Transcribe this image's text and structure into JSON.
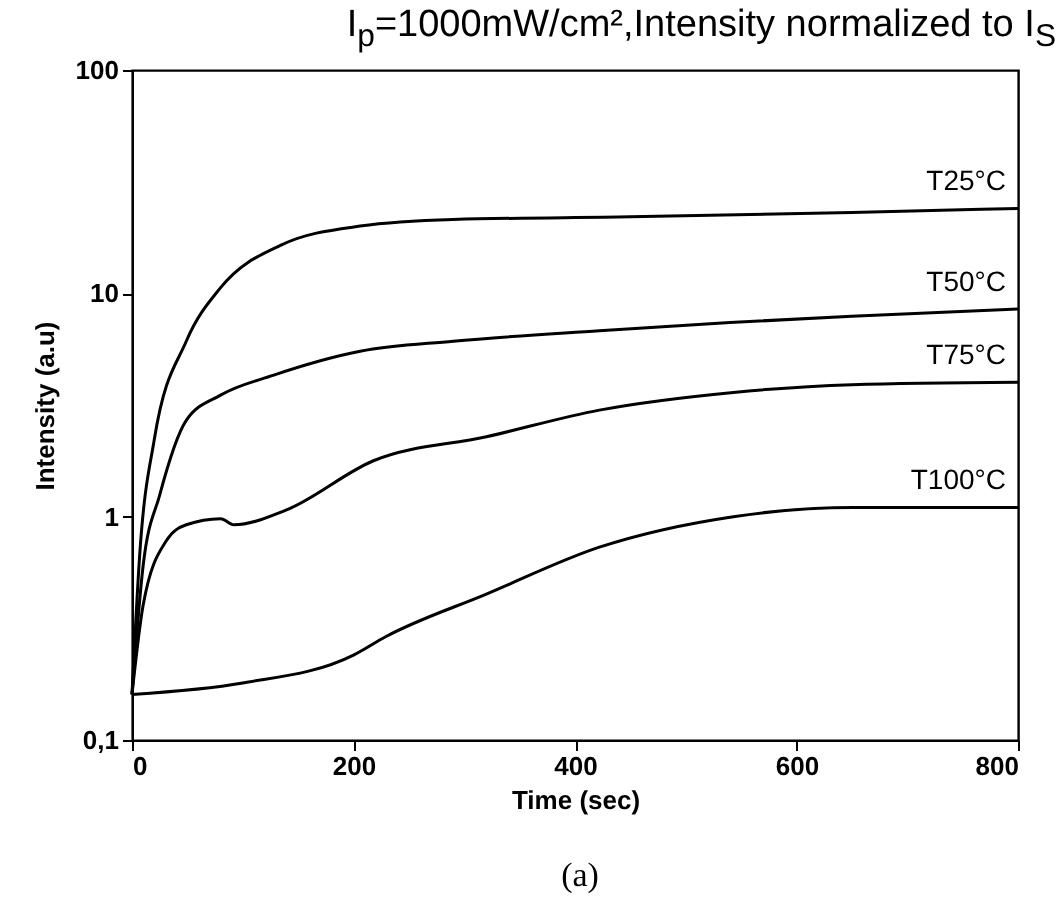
{
  "chart_data": {
    "type": "line",
    "title": "I$_{p}$=1000mW/cm²,Intensity normalized to I$_{S}$",
    "xlabel": "Time (sec)",
    "ylabel": "Intensity (a.u)",
    "log": "y",
    "xlim": [
      0,
      800
    ],
    "xticks": [
      0,
      200,
      400,
      600,
      800
    ],
    "ylim": [
      0.1,
      100
    ],
    "yticks": [
      {
        "value": 0.1,
        "label": "0,1"
      },
      1,
      10,
      100
    ],
    "legend": false,
    "grid": false,
    "marker": "none",
    "line_style": "solid",
    "annotations": [
      "(a)"
    ],
    "series": [
      {
        "name": "T25°C",
        "color": "#000000",
        "x": [
          0,
          7,
          20,
          49,
          80,
          134,
          206,
          290,
          450,
          650,
          800
        ],
        "values": [
          0.16,
          0.68,
          2.2,
          6.1,
          10.6,
          16.4,
          20,
          21.4,
          22,
          23,
          24
        ]
      },
      {
        "name": "T50°C",
        "color": "#000000",
        "x": [
          0,
          10,
          25,
          49,
          80,
          128,
          206,
          290,
          422,
          540,
          650,
          800
        ],
        "values": [
          0.16,
          0.6,
          1.25,
          2.7,
          3.5,
          4.3,
          5.5,
          6.1,
          6.8,
          7.4,
          7.9,
          8.5
        ]
      },
      {
        "name": "T75°C",
        "color": "#000000",
        "x": [
          0,
          10,
          31,
          49,
          80,
          92,
          139,
          218,
          320,
          422,
          543,
          650,
          800
        ],
        "values": [
          0.16,
          0.4,
          0.78,
          0.92,
          0.98,
          0.92,
          1.07,
          1.78,
          2.28,
          3.0,
          3.6,
          3.9,
          4.0
        ]
      },
      {
        "name": "T100°C",
        "color": "#000000",
        "x": [
          0,
          100,
          200,
          229,
          320,
          422,
          543,
          651,
          800
        ],
        "values": [
          0.16,
          0.18,
          0.24,
          0.29,
          0.45,
          0.73,
          1.0,
          1.1,
          1.1
        ]
      }
    ]
  }
}
